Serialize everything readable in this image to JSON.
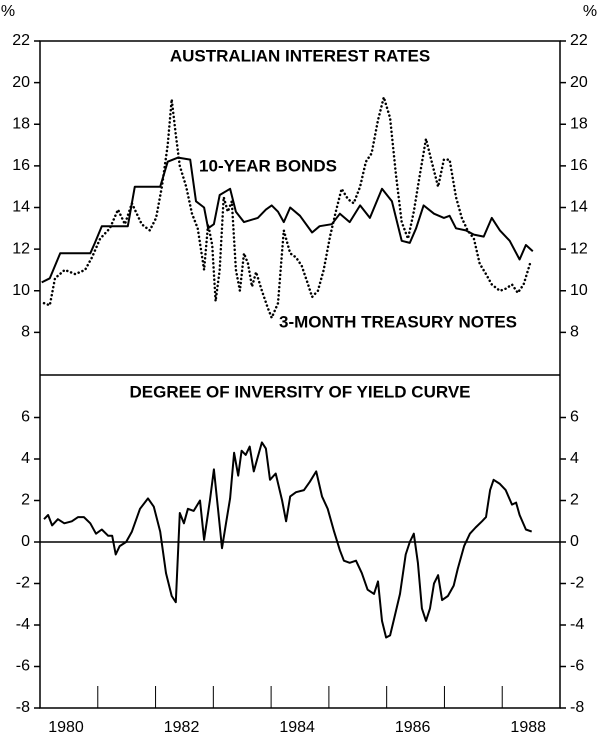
{
  "chart_data": [
    {
      "type": "line",
      "title": "AUSTRALIAN INTEREST RATES",
      "y_unit": "%",
      "xlim": [
        1980,
        1989
      ],
      "ylim": [
        6,
        22
      ],
      "yticks": [
        8,
        10,
        12,
        14,
        16,
        18,
        20,
        22
      ],
      "series": [
        {
          "name": "10-YEAR BONDS",
          "color": "#000000",
          "style": "solid",
          "x": [
            1980.03,
            1980.17,
            1980.35,
            1980.87,
            1980.95,
            1981.07,
            1981.52,
            1981.64,
            1982.08,
            1982.21,
            1982.39,
            1982.6,
            1982.7,
            1982.84,
            1982.91,
            1983.01,
            1983.11,
            1983.29,
            1983.39,
            1983.53,
            1983.77,
            1983.91,
            1984.01,
            1984.12,
            1984.22,
            1984.33,
            1984.5,
            1984.71,
            1984.84,
            1985.05,
            1985.19,
            1985.36,
            1985.54,
            1985.71,
            1985.92,
            1986.09,
            1986.26,
            1986.4,
            1986.51,
            1986.64,
            1986.82,
            1986.99,
            1987.09,
            1987.2,
            1987.37,
            1987.51,
            1987.68,
            1987.82,
            1987.96,
            1988.13,
            1988.3,
            1988.41,
            1988.53
          ],
          "values": [
            10.4,
            10.6,
            11.8,
            11.8,
            12.3,
            13.1,
            13.1,
            15.0,
            15.0,
            16.2,
            16.4,
            16.3,
            14.3,
            14.0,
            13.0,
            13.2,
            14.6,
            14.9,
            13.8,
            13.3,
            13.5,
            13.9,
            14.1,
            13.8,
            13.3,
            14.0,
            13.6,
            12.8,
            13.1,
            13.2,
            13.7,
            13.3,
            14.1,
            13.5,
            14.9,
            14.3,
            12.4,
            12.3,
            13.0,
            14.1,
            13.7,
            13.5,
            13.6,
            13.0,
            12.9,
            12.7,
            12.6,
            13.5,
            12.9,
            12.4,
            11.5,
            12.2,
            11.9
          ]
        },
        {
          "name": "3-MONTH TREASURY NOTES",
          "color": "#000000",
          "style": "dotted",
          "x": [
            1980.07,
            1980.17,
            1980.26,
            1980.43,
            1980.61,
            1980.78,
            1980.9,
            1981.04,
            1981.21,
            1981.35,
            1981.47,
            1981.59,
            1981.76,
            1981.9,
            1982.01,
            1982.11,
            1982.21,
            1982.28,
            1982.35,
            1982.42,
            1982.53,
            1982.63,
            1982.73,
            1982.84,
            1982.91,
            1982.98,
            1983.04,
            1983.11,
            1983.18,
            1983.25,
            1983.32,
            1983.39,
            1983.46,
            1983.53,
            1983.6,
            1983.67,
            1983.74,
            1983.84,
            1983.94,
            1984.01,
            1984.12,
            1984.22,
            1984.33,
            1984.43,
            1984.53,
            1984.64,
            1984.71,
            1984.81,
            1984.91,
            1985.02,
            1985.12,
            1985.22,
            1985.33,
            1985.43,
            1985.54,
            1985.64,
            1985.74,
            1985.85,
            1985.95,
            1986.06,
            1986.16,
            1986.26,
            1986.37,
            1986.47,
            1986.57,
            1986.68,
            1986.78,
            1986.89,
            1986.99,
            1987.09,
            1987.2,
            1987.3,
            1987.4,
            1987.51,
            1987.61,
            1987.72,
            1987.82,
            1987.96,
            1988.06,
            1988.17,
            1988.27,
            1988.37,
            1988.48
          ],
          "values": [
            9.4,
            9.3,
            10.6,
            11.0,
            10.8,
            11.0,
            11.6,
            12.5,
            13.0,
            13.9,
            13.2,
            14.2,
            13.2,
            12.9,
            13.5,
            15.0,
            17.0,
            19.2,
            17.5,
            16.0,
            15.0,
            13.7,
            13.0,
            11.0,
            13.2,
            12.2,
            9.5,
            11.0,
            14.5,
            13.8,
            14.3,
            11.0,
            10.0,
            11.8,
            11.3,
            10.2,
            10.9,
            10.0,
            9.2,
            8.7,
            9.4,
            12.9,
            11.8,
            11.6,
            11.2,
            10.3,
            9.7,
            10.0,
            11.0,
            12.6,
            13.8,
            14.9,
            14.4,
            14.2,
            15.0,
            16.2,
            16.6,
            18.2,
            19.3,
            18.3,
            15.6,
            13.3,
            12.5,
            13.8,
            15.5,
            17.3,
            16.2,
            15.0,
            16.3,
            16.3,
            14.5,
            13.5,
            12.9,
            12.5,
            11.3,
            10.8,
            10.3,
            10.0,
            10.1,
            10.3,
            9.9,
            10.3,
            11.3
          ]
        }
      ]
    },
    {
      "type": "line",
      "title": "DEGREE OF INVERSITY OF YIELD CURVE",
      "xlim": [
        1980,
        1989
      ],
      "xticks": [
        1981,
        1982,
        1983,
        1984,
        1985,
        1986,
        1987,
        1988
      ],
      "year_labels": [
        1980,
        1982,
        1984,
        1986,
        1988
      ],
      "ylim": [
        -8,
        8
      ],
      "yticks": [
        -8,
        -6,
        -4,
        -2,
        0,
        2,
        4,
        6
      ],
      "zero_line": true,
      "series": [
        {
          "color": "#000000",
          "style": "solid",
          "x": [
            1980.07,
            1980.14,
            1980.21,
            1980.31,
            1980.42,
            1980.55,
            1980.66,
            1980.76,
            1980.87,
            1980.97,
            1981.07,
            1981.18,
            1981.25,
            1981.31,
            1981.38,
            1981.49,
            1981.59,
            1981.73,
            1981.87,
            1981.97,
            1982.08,
            1982.18,
            1982.28,
            1982.35,
            1982.42,
            1982.49,
            1982.56,
            1982.66,
            1982.77,
            1982.84,
            1982.94,
            1983.01,
            1983.08,
            1983.15,
            1983.22,
            1983.29,
            1983.36,
            1983.43,
            1983.49,
            1983.56,
            1983.63,
            1983.7,
            1983.77,
            1983.84,
            1983.91,
            1983.98,
            1984.08,
            1984.19,
            1984.26,
            1984.33,
            1984.43,
            1984.57,
            1984.67,
            1984.78,
            1984.88,
            1984.98,
            1985.09,
            1985.19,
            1985.26,
            1985.36,
            1985.47,
            1985.57,
            1985.67,
            1985.78,
            1985.85,
            1985.92,
            1985.99,
            1986.06,
            1986.12,
            1986.23,
            1986.33,
            1986.4,
            1986.47,
            1986.54,
            1986.61,
            1986.68,
            1986.75,
            1986.82,
            1986.89,
            1986.96,
            1987.06,
            1987.16,
            1987.23,
            1987.34,
            1987.44,
            1987.54,
            1987.65,
            1987.72,
            1987.79,
            1987.85,
            1987.96,
            1988.06,
            1988.17,
            1988.24,
            1988.3,
            1988.41,
            1988.51
          ],
          "values": [
            1.1,
            1.3,
            0.8,
            1.1,
            0.9,
            1.0,
            1.2,
            1.2,
            0.9,
            0.4,
            0.6,
            0.3,
            0.3,
            -0.6,
            -0.2,
            0.0,
            0.5,
            1.6,
            2.1,
            1.7,
            0.5,
            -1.5,
            -2.6,
            -2.9,
            1.4,
            0.9,
            1.6,
            1.5,
            2.0,
            0.1,
            2.0,
            3.5,
            1.6,
            -0.3,
            0.9,
            2.1,
            4.3,
            3.2,
            4.4,
            4.2,
            4.6,
            3.4,
            4.1,
            4.8,
            4.5,
            3.0,
            3.3,
            2.0,
            1.0,
            2.2,
            2.4,
            2.5,
            2.9,
            3.4,
            2.2,
            1.6,
            0.5,
            -0.4,
            -0.9,
            -1.0,
            -0.9,
            -1.5,
            -2.3,
            -2.5,
            -1.9,
            -3.8,
            -4.6,
            -4.5,
            -3.8,
            -2.5,
            -0.6,
            0.0,
            0.4,
            -1.0,
            -3.2,
            -3.8,
            -3.2,
            -2.0,
            -1.6,
            -2.8,
            -2.6,
            -2.1,
            -1.3,
            -0.2,
            0.4,
            0.7,
            1.0,
            1.2,
            2.5,
            3.0,
            2.8,
            2.5,
            1.8,
            1.9,
            1.3,
            0.6,
            0.5
          ]
        }
      ]
    }
  ]
}
